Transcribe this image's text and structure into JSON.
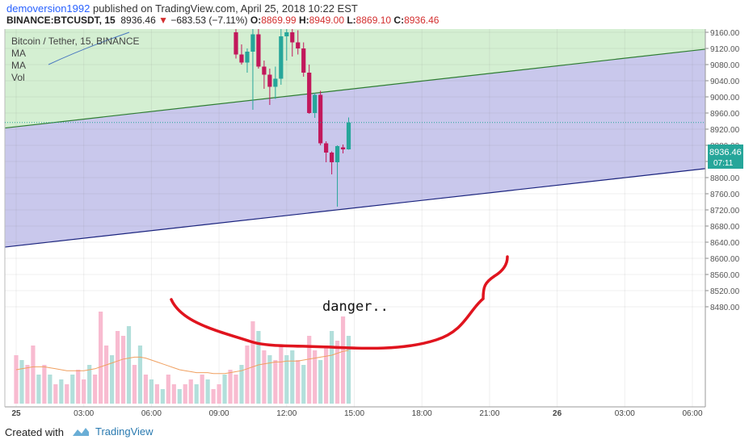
{
  "header": {
    "user": "demoversion1992",
    "published": " published on TradingView.com, April 25, 2018 10:22 EST",
    "symbol": "BINANCE:BTCUSDT, 15",
    "last": "8936.46",
    "arrow": "▼",
    "change": "−683.53 (−7.11%)",
    "o_label": "O:",
    "o_value": "8869.99",
    "h_label": "H:",
    "h_value": "8949.00",
    "l_label": "L:",
    "l_value": "8869.10",
    "c_label": "C:",
    "c_value": "8936.46"
  },
  "legend": {
    "title": "Bitcoin / Tether, 15, BINANCE",
    "ma1": "MA",
    "ma2": "MA",
    "vol": "Vol"
  },
  "price_tag": {
    "price": "8936.46",
    "countdown": "07:11"
  },
  "annotation": {
    "text": "danger.."
  },
  "footer": {
    "created": "Created with",
    "brand": "TradingView"
  },
  "colors": {
    "up": "#26a69a",
    "down": "#c2185b",
    "vol_up": "#b2dfdb",
    "vol_down": "#f8bbd0",
    "channel_top": "#d4efd2",
    "channel_mid": "#c9c8ec",
    "line_green": "#2e7d32",
    "line_blue": "#1a237e",
    "price_tag": "#26a69a",
    "annotation": "#e0141e",
    "ma_line": "#f0a060"
  },
  "chart_data": {
    "type": "candlestick",
    "y_ticks": [
      9160,
      9120,
      9080,
      9040,
      9000,
      8960,
      8920,
      8880,
      8840,
      8800,
      8760,
      8720,
      8680,
      8640,
      8600,
      8560,
      8520,
      8480
    ],
    "y_tick_labels": [
      "9160.00",
      "9120.00",
      "9080.00",
      "9040.00",
      "9000.00",
      "8960.00",
      "8920.00",
      "8880.00",
      "8840.00",
      "8800.00",
      "8760.00",
      "8720.00",
      "8680.00",
      "8640.00",
      "8600.00",
      "8560.00",
      "8520.00",
      "8480.00"
    ],
    "x_ticks": [
      {
        "label": "25",
        "time": "00:00"
      },
      {
        "label": "03:00",
        "time": "03:00"
      },
      {
        "label": "06:00",
        "time": "06:00"
      },
      {
        "label": "09:00",
        "time": "09:00"
      },
      {
        "label": "12:00",
        "time": "12:00"
      },
      {
        "label": "15:00",
        "time": "15:00"
      },
      {
        "label": "18:00",
        "time": "18:00"
      },
      {
        "label": "21:00",
        "time": "21:00"
      },
      {
        "label": "26",
        "time": "24:00"
      },
      {
        "label": "03:00",
        "time": "27:00"
      },
      {
        "label": "06:00",
        "time": "30:00"
      }
    ],
    "channel": {
      "upper_start": {
        "time": "00:00",
        "price": 8926
      },
      "upper_end": {
        "time": "31:30",
        "price": 9124
      },
      "lower_start": {
        "time": "00:00",
        "price": 8631
      },
      "lower_end": {
        "time": "31:30",
        "price": 8828
      }
    },
    "candles": [
      {
        "time": "09:45",
        "o": 9160,
        "h": 9185,
        "l": 9095,
        "c": 9105
      },
      {
        "time": "10:00",
        "o": 9105,
        "h": 9130,
        "l": 9080,
        "c": 9085
      },
      {
        "time": "10:15",
        "o": 9085,
        "h": 9120,
        "l": 9060,
        "c": 9112
      },
      {
        "time": "10:30",
        "o": 9112,
        "h": 9180,
        "l": 8968,
        "c": 9155
      },
      {
        "time": "10:45",
        "o": 9155,
        "h": 9175,
        "l": 9070,
        "c": 9075
      },
      {
        "time": "11:00",
        "o": 9075,
        "h": 9090,
        "l": 9020,
        "c": 9055
      },
      {
        "time": "11:15",
        "o": 9055,
        "h": 9070,
        "l": 8980,
        "c": 9025
      },
      {
        "time": "11:30",
        "o": 9025,
        "h": 9075,
        "l": 8995,
        "c": 9045
      },
      {
        "time": "11:45",
        "o": 9045,
        "h": 9175,
        "l": 9030,
        "c": 9150
      },
      {
        "time": "12:00",
        "o": 9150,
        "h": 9175,
        "l": 9090,
        "c": 9160
      },
      {
        "time": "12:15",
        "o": 9160,
        "h": 9175,
        "l": 9100,
        "c": 9135
      },
      {
        "time": "12:30",
        "o": 9135,
        "h": 9165,
        "l": 9105,
        "c": 9120
      },
      {
        "time": "12:45",
        "o": 9120,
        "h": 9135,
        "l": 9050,
        "c": 9060
      },
      {
        "time": "13:00",
        "o": 9060,
        "h": 9080,
        "l": 8958,
        "c": 8960
      },
      {
        "time": "13:15",
        "o": 8960,
        "h": 9010,
        "l": 8948,
        "c": 9005
      },
      {
        "time": "13:30",
        "o": 9005,
        "h": 9015,
        "l": 8880,
        "c": 8885
      },
      {
        "time": "13:45",
        "o": 8885,
        "h": 8890,
        "l": 8838,
        "c": 8862
      },
      {
        "time": "14:00",
        "o": 8862,
        "h": 8865,
        "l": 8808,
        "c": 8838
      },
      {
        "time": "14:15",
        "o": 8838,
        "h": 8880,
        "l": 8728,
        "c": 8878
      },
      {
        "time": "14:30",
        "o": 8875,
        "h": 8882,
        "l": 8860,
        "c": 8870
      },
      {
        "time": "14:45",
        "o": 8869.99,
        "h": 8949,
        "l": 8869.1,
        "c": 8936.46
      }
    ],
    "volume": {
      "note": "relative volume 0-1 per 15m bar, from 00:00 to 14:45",
      "values": [
        0.5,
        0.45,
        0.4,
        0.6,
        0.3,
        0.4,
        0.3,
        0.2,
        0.25,
        0.2,
        0.3,
        0.35,
        0.25,
        0.4,
        0.3,
        0.95,
        0.6,
        0.5,
        0.75,
        0.7,
        0.8,
        0.4,
        0.6,
        0.3,
        0.25,
        0.2,
        0.15,
        0.3,
        0.2,
        0.15,
        0.2,
        0.25,
        0.2,
        0.3,
        0.25,
        0.15,
        0.2,
        0.3,
        0.35,
        0.3,
        0.4,
        0.6,
        0.85,
        0.75,
        0.55,
        0.5,
        0.45,
        0.6,
        0.5,
        0.55,
        0.45,
        0.4,
        0.7,
        0.55,
        0.45,
        0.6,
        0.75,
        0.65,
        0.9,
        0.7
      ],
      "up": [
        false,
        true,
        false,
        false,
        true,
        false,
        true,
        false,
        true,
        false,
        true,
        false,
        false,
        true,
        false,
        false,
        false,
        true,
        false,
        false,
        true,
        false,
        true,
        false,
        true,
        false,
        true,
        false,
        false,
        true,
        false,
        false,
        true,
        false,
        true,
        false,
        false,
        true,
        false,
        false,
        true,
        false,
        false,
        true,
        false,
        true,
        false,
        false,
        true,
        true,
        false,
        true,
        false,
        false,
        true,
        false,
        true,
        false,
        false,
        true
      ],
      "ma": [
        0.35,
        0.36,
        0.37,
        0.38,
        0.38,
        0.38,
        0.37,
        0.36,
        0.35,
        0.34,
        0.34,
        0.34,
        0.34,
        0.35,
        0.36,
        0.38,
        0.4,
        0.42,
        0.44,
        0.46,
        0.47,
        0.48,
        0.48,
        0.47,
        0.45,
        0.43,
        0.41,
        0.39,
        0.37,
        0.35,
        0.34,
        0.33,
        0.32,
        0.32,
        0.32,
        0.31,
        0.31,
        0.31,
        0.32,
        0.33,
        0.34,
        0.36,
        0.38,
        0.4,
        0.41,
        0.42,
        0.43,
        0.43,
        0.44,
        0.44,
        0.44,
        0.45,
        0.46,
        0.47,
        0.48,
        0.49,
        0.5,
        0.52,
        0.54,
        0.55
      ]
    }
  }
}
